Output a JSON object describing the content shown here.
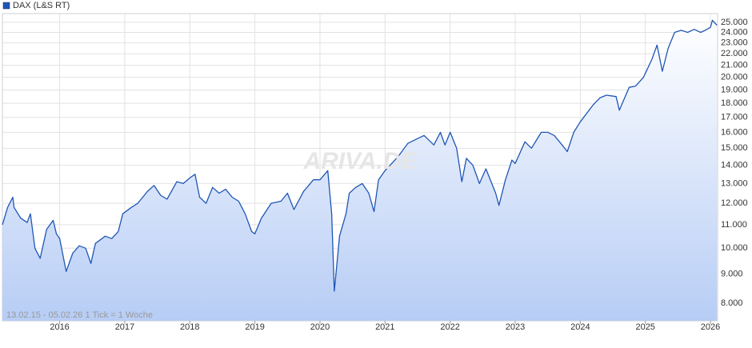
{
  "chart_data": {
    "type": "line",
    "watermark": "ARIVA.DE",
    "note": "13.02.15 - 05.02.26   1 Tick = 1 Woche",
    "log_y": true,
    "grid": true,
    "legend": "top-left",
    "xlim": [
      2015.12,
      2026.11
    ],
    "xticks": [
      2016,
      2017,
      2018,
      2019,
      2020,
      2021,
      2022,
      2023,
      2024,
      2025,
      2026
    ],
    "ylim": [
      7450,
      25900
    ],
    "yticks": [
      {
        "value": 8000,
        "label": "8.000"
      },
      {
        "value": 9000,
        "label": "9.000"
      },
      {
        "value": 10000,
        "label": "10.000"
      },
      {
        "value": 11000,
        "label": "11.000"
      },
      {
        "value": 12000,
        "label": "12.000"
      },
      {
        "value": 13000,
        "label": "13.000"
      },
      {
        "value": 14000,
        "label": "14.000"
      },
      {
        "value": 15000,
        "label": "15.000"
      },
      {
        "value": 16000,
        "label": "16.000"
      },
      {
        "value": 17000,
        "label": "17.000"
      },
      {
        "value": 18000,
        "label": "18.000"
      },
      {
        "value": 19000,
        "label": "19.000"
      },
      {
        "value": 20000,
        "label": "20.000"
      },
      {
        "value": 21000,
        "label": "21.000"
      },
      {
        "value": 22000,
        "label": "22.000"
      },
      {
        "value": 23000,
        "label": "23.000"
      },
      {
        "value": 24000,
        "label": "24.000"
      },
      {
        "value": 25000,
        "label": "25.000"
      }
    ],
    "x": [
      2015.12,
      2015.2,
      2015.28,
      2015.3,
      2015.4,
      2015.5,
      2015.55,
      2015.62,
      2015.7,
      2015.8,
      2015.9,
      2015.95,
      2016.0,
      2016.1,
      2016.2,
      2016.3,
      2016.4,
      2016.48,
      2016.55,
      2016.7,
      2016.8,
      2016.9,
      2016.97,
      2017.1,
      2017.2,
      2017.35,
      2017.45,
      2017.55,
      2017.65,
      2017.8,
      2017.9,
      2018.0,
      2018.08,
      2018.15,
      2018.25,
      2018.35,
      2018.45,
      2018.55,
      2018.65,
      2018.75,
      2018.85,
      2018.95,
      2019.0,
      2019.1,
      2019.25,
      2019.4,
      2019.5,
      2019.6,
      2019.75,
      2019.9,
      2020.0,
      2020.12,
      2020.18,
      2020.22,
      2020.3,
      2020.4,
      2020.45,
      2020.55,
      2020.65,
      2020.75,
      2020.83,
      2020.9,
      2021.0,
      2021.2,
      2021.35,
      2021.5,
      2021.6,
      2021.75,
      2021.85,
      2021.92,
      2022.0,
      2022.1,
      2022.18,
      2022.25,
      2022.35,
      2022.45,
      2022.55,
      2022.7,
      2022.75,
      2022.85,
      2022.95,
      2023.0,
      2023.15,
      2023.25,
      2023.4,
      2023.5,
      2023.6,
      2023.7,
      2023.8,
      2023.9,
      2024.0,
      2024.2,
      2024.3,
      2024.4,
      2024.55,
      2024.6,
      2024.75,
      2024.85,
      2024.97,
      2025.1,
      2025.18,
      2025.26,
      2025.35,
      2025.45,
      2025.55,
      2025.65,
      2025.75,
      2025.85,
      2025.92,
      2026.0,
      2026.03,
      2026.1
    ],
    "series": [
      {
        "name": "DAX (L&S RT)",
        "color": "#1f56b5",
        "values": [
          11000,
          11800,
          12300,
          11800,
          11300,
          11100,
          11500,
          10000,
          9600,
          10800,
          11200,
          10600,
          10400,
          9100,
          9800,
          10100,
          10000,
          9400,
          10200,
          10500,
          10400,
          10700,
          11500,
          11800,
          12000,
          12600,
          12900,
          12400,
          12200,
          13100,
          13000,
          13300,
          13500,
          12300,
          12000,
          12800,
          12500,
          12700,
          12300,
          12100,
          11500,
          10700,
          10600,
          11300,
          12000,
          12100,
          12500,
          11700,
          12600,
          13200,
          13200,
          13700,
          11500,
          8400,
          10500,
          11500,
          12500,
          12800,
          13000,
          12500,
          11600,
          13200,
          13700,
          14500,
          15300,
          15600,
          15800,
          15200,
          16000,
          15200,
          16000,
          15000,
          13100,
          14400,
          14000,
          13000,
          13800,
          12500,
          11900,
          13200,
          14300,
          14100,
          15400,
          15000,
          16000,
          16000,
          15800,
          15300,
          14800,
          16000,
          16700,
          17900,
          18400,
          18600,
          18500,
          17500,
          19200,
          19300,
          20000,
          21500,
          22800,
          20500,
          22500,
          24000,
          24200,
          24000,
          24300,
          24000,
          24200,
          24500,
          25200,
          24700
        ]
      }
    ]
  }
}
